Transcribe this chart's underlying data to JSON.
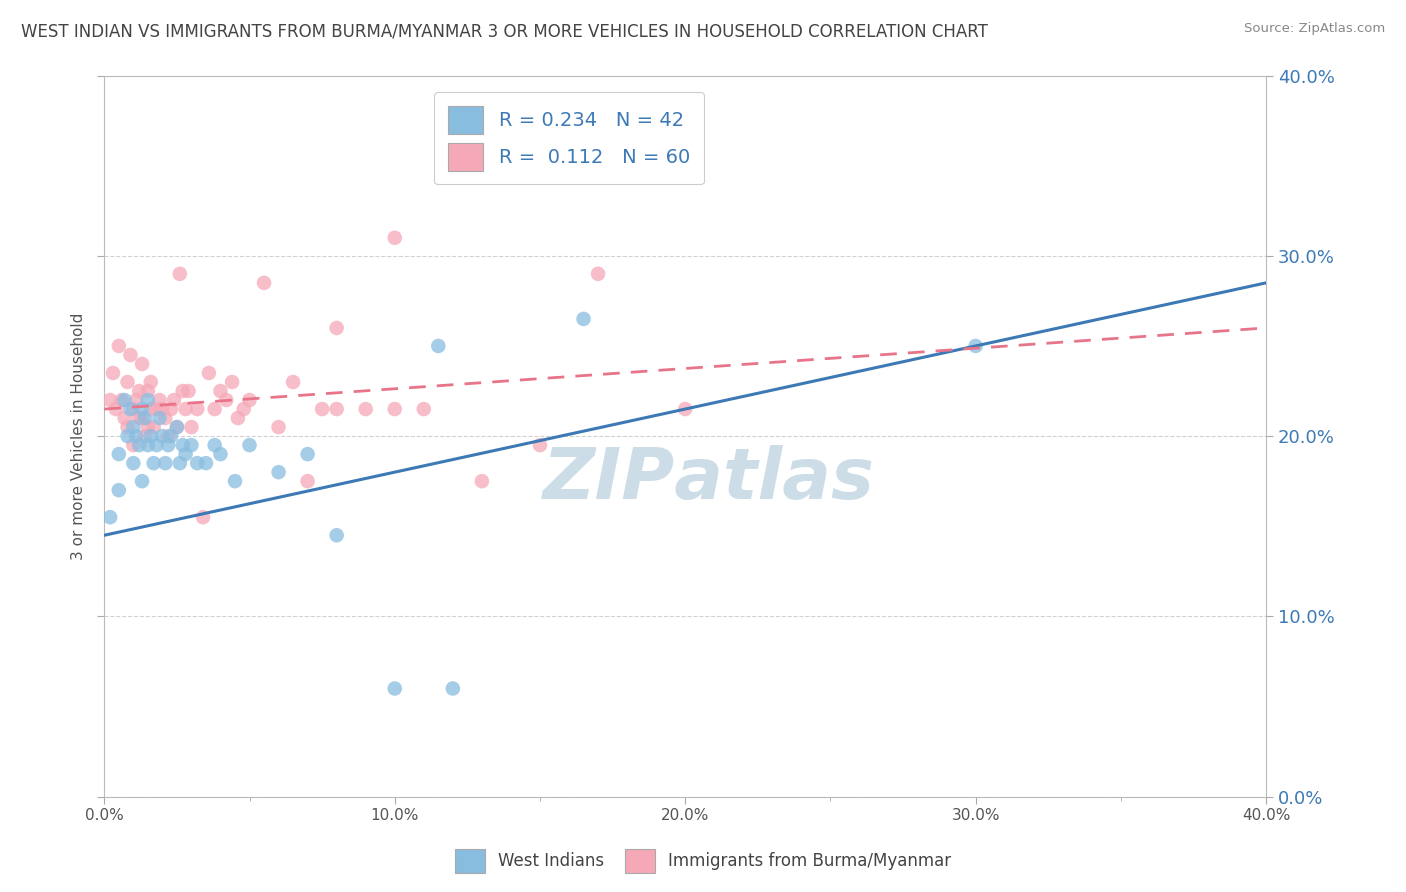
{
  "title": "WEST INDIAN VS IMMIGRANTS FROM BURMA/MYANMAR 3 OR MORE VEHICLES IN HOUSEHOLD CORRELATION CHART",
  "source": "Source: ZipAtlas.com",
  "ylabel": "3 or more Vehicles in Household",
  "legend_bottom": [
    "West Indians",
    "Immigrants from Burma/Myanmar"
  ],
  "R_blue": 0.234,
  "N_blue": 42,
  "R_pink": 0.112,
  "N_pink": 60,
  "blue_color": "#89bde0",
  "pink_color": "#f5a8b8",
  "blue_line_color": "#3d7ab5",
  "pink_line_color": "#e8748a",
  "watermark_color": "#cddde8",
  "xlim": [
    0.0,
    0.4
  ],
  "ylim": [
    0.0,
    0.4
  ],
  "figsize": [
    14.06,
    8.92
  ],
  "dpi": 100,
  "blue_x": [
    0.002,
    0.005,
    0.005,
    0.007,
    0.008,
    0.009,
    0.01,
    0.01,
    0.011,
    0.012,
    0.013,
    0.013,
    0.014,
    0.015,
    0.015,
    0.016,
    0.017,
    0.018,
    0.019,
    0.02,
    0.021,
    0.022,
    0.023,
    0.025,
    0.026,
    0.027,
    0.028,
    0.03,
    0.032,
    0.035,
    0.038,
    0.04,
    0.045,
    0.05,
    0.06,
    0.07,
    0.08,
    0.1,
    0.12,
    0.3,
    0.115,
    0.165
  ],
  "blue_y": [
    0.155,
    0.17,
    0.19,
    0.22,
    0.2,
    0.215,
    0.205,
    0.185,
    0.2,
    0.195,
    0.215,
    0.175,
    0.21,
    0.195,
    0.22,
    0.2,
    0.185,
    0.195,
    0.21,
    0.2,
    0.185,
    0.195,
    0.2,
    0.205,
    0.185,
    0.195,
    0.19,
    0.195,
    0.185,
    0.185,
    0.195,
    0.19,
    0.175,
    0.195,
    0.18,
    0.19,
    0.145,
    0.06,
    0.06,
    0.25,
    0.25,
    0.265
  ],
  "pink_x": [
    0.002,
    0.003,
    0.004,
    0.005,
    0.006,
    0.007,
    0.008,
    0.008,
    0.009,
    0.01,
    0.01,
    0.011,
    0.012,
    0.012,
    0.013,
    0.013,
    0.014,
    0.015,
    0.015,
    0.016,
    0.016,
    0.017,
    0.018,
    0.019,
    0.02,
    0.021,
    0.022,
    0.023,
    0.024,
    0.025,
    0.026,
    0.027,
    0.028,
    0.029,
    0.03,
    0.032,
    0.034,
    0.036,
    0.038,
    0.04,
    0.042,
    0.044,
    0.046,
    0.048,
    0.05,
    0.055,
    0.06,
    0.065,
    0.07,
    0.075,
    0.08,
    0.09,
    0.1,
    0.11,
    0.13,
    0.15,
    0.17,
    0.2,
    0.1,
    0.08
  ],
  "pink_y": [
    0.22,
    0.235,
    0.215,
    0.25,
    0.22,
    0.21,
    0.205,
    0.23,
    0.245,
    0.215,
    0.195,
    0.22,
    0.21,
    0.225,
    0.24,
    0.21,
    0.2,
    0.225,
    0.205,
    0.215,
    0.23,
    0.205,
    0.215,
    0.22,
    0.215,
    0.21,
    0.2,
    0.215,
    0.22,
    0.205,
    0.29,
    0.225,
    0.215,
    0.225,
    0.205,
    0.215,
    0.155,
    0.235,
    0.215,
    0.225,
    0.22,
    0.23,
    0.21,
    0.215,
    0.22,
    0.285,
    0.205,
    0.23,
    0.175,
    0.215,
    0.215,
    0.215,
    0.215,
    0.215,
    0.175,
    0.195,
    0.29,
    0.215,
    0.31,
    0.26
  ],
  "blue_line_x": [
    0.0,
    0.4
  ],
  "blue_line_y": [
    0.145,
    0.285
  ],
  "pink_line_x": [
    0.0,
    0.4
  ],
  "pink_line_y": [
    0.215,
    0.26
  ]
}
